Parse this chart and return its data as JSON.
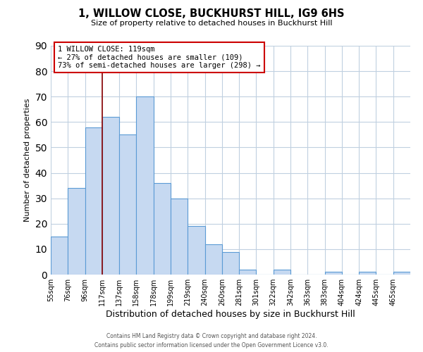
{
  "title": "1, WILLOW CLOSE, BUCKHURST HILL, IG9 6HS",
  "subtitle": "Size of property relative to detached houses in Buckhurst Hill",
  "xlabel": "Distribution of detached houses by size in Buckhurst Hill",
  "ylabel": "Number of detached properties",
  "bin_labels": [
    "55sqm",
    "76sqm",
    "96sqm",
    "117sqm",
    "137sqm",
    "158sqm",
    "178sqm",
    "199sqm",
    "219sqm",
    "240sqm",
    "260sqm",
    "281sqm",
    "301sqm",
    "322sqm",
    "342sqm",
    "363sqm",
    "383sqm",
    "404sqm",
    "424sqm",
    "445sqm",
    "465sqm"
  ],
  "bar_heights": [
    15,
    34,
    58,
    62,
    55,
    70,
    36,
    30,
    19,
    12,
    9,
    2,
    0,
    2,
    0,
    0,
    1,
    0,
    1,
    0,
    1
  ],
  "bar_color": "#c6d9f1",
  "bar_edgecolor": "#5b9bd5",
  "ylim": [
    0,
    90
  ],
  "yticks": [
    0,
    10,
    20,
    30,
    40,
    50,
    60,
    70,
    80,
    90
  ],
  "property_line_bar_idx": 3,
  "property_line_color": "#8b0000",
  "annotation_title": "1 WILLOW CLOSE: 119sqm",
  "annotation_line1": "← 27% of detached houses are smaller (109)",
  "annotation_line2": "73% of semi-detached houses are larger (298) →",
  "annotation_box_color": "#ffffff",
  "annotation_box_edgecolor": "#cc0000",
  "footer1": "Contains HM Land Registry data © Crown copyright and database right 2024.",
  "footer2": "Contains public sector information licensed under the Open Government Licence v3.0.",
  "background_color": "#ffffff",
  "grid_color": "#c0d0e0"
}
